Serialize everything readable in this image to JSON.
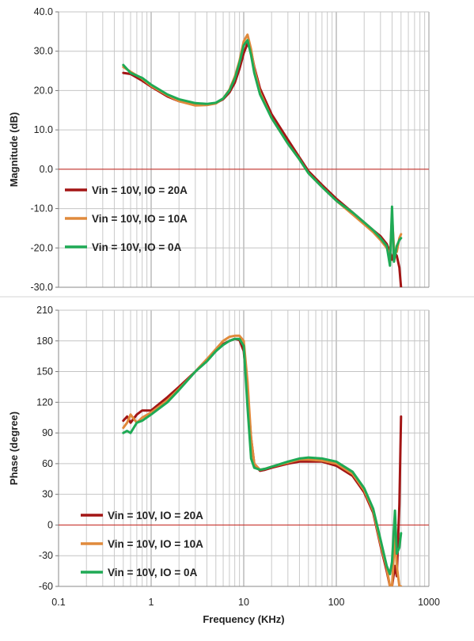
{
  "chart_data": [
    {
      "type": "line",
      "xlabel": "",
      "ylabel": "Magnitude (dB)",
      "xscale": "log",
      "xlim": [
        0.1,
        1000
      ],
      "ylim": [
        -30,
        40
      ],
      "y_ticks": [
        "40.0",
        "30.0",
        "20.0",
        "10.0",
        "0.0",
        "-10.0",
        "-20.0",
        "-30.0"
      ],
      "reference_line": 0,
      "grid": true,
      "legend_placement": "lower-left",
      "series": [
        {
          "name": "Vin = 10V, IO = 20A",
          "color": "#a31515",
          "x": [
            0.5,
            0.6,
            0.8,
            1,
            1.5,
            2,
            3,
            4,
            5,
            6,
            7,
            8,
            9,
            10,
            11,
            12,
            13,
            15,
            20,
            30,
            40,
            50,
            70,
            100,
            150,
            200,
            250,
            300,
            350,
            380,
            400,
            420,
            450,
            480,
            500
          ],
          "y": [
            24.5,
            24.2,
            22.5,
            21,
            18.5,
            17.3,
            16.5,
            16.4,
            16.8,
            17.8,
            19.5,
            22,
            25.5,
            29.5,
            32,
            30,
            26,
            20.5,
            14,
            7.5,
            3,
            -0.5,
            -4,
            -7.5,
            -11,
            -13.5,
            -15.5,
            -17,
            -19,
            -21,
            -23,
            -21,
            -22,
            -25,
            -30
          ]
        },
        {
          "name": "Vin = 10V, IO = 10A",
          "color": "#e08a3c",
          "x": [
            0.5,
            0.6,
            0.8,
            1,
            1.5,
            2,
            3,
            4,
            5,
            6,
            7,
            8,
            9,
            10,
            11,
            12,
            13,
            15,
            20,
            30,
            40,
            50,
            70,
            100,
            150,
            200,
            250,
            300,
            350,
            380,
            400,
            420,
            450,
            480,
            500
          ],
          "y": [
            26,
            24.8,
            23,
            21.2,
            18.8,
            17.3,
            16.2,
            16.3,
            16.7,
            18,
            20.2,
            23.5,
            27.5,
            32.5,
            34.2,
            30.5,
            25.5,
            19.5,
            13,
            6.5,
            2.5,
            -1,
            -4.5,
            -8,
            -11.5,
            -14,
            -16,
            -18,
            -20,
            -22,
            -12,
            -20,
            -21,
            -17.5,
            -16.5
          ]
        },
        {
          "name": "Vin = 10V, IO = 0A",
          "color": "#1faa55",
          "x": [
            0.5,
            0.6,
            0.8,
            1,
            1.5,
            2,
            3,
            4,
            5,
            6,
            7,
            8,
            9,
            10,
            11,
            12,
            13,
            15,
            20,
            30,
            40,
            50,
            70,
            100,
            150,
            200,
            250,
            300,
            350,
            380,
            400,
            420,
            450,
            480,
            500
          ],
          "y": [
            26.5,
            24.5,
            23.2,
            21.5,
            19,
            17.8,
            16.8,
            16.6,
            16.9,
            18,
            20,
            23,
            27,
            31.5,
            32.8,
            29,
            24.5,
            19,
            13,
            6.5,
            2.5,
            -1,
            -4.5,
            -8,
            -11,
            -13.5,
            -15.5,
            -17.5,
            -19.5,
            -24.5,
            -9.5,
            -23.5,
            -19.5,
            -18,
            -17.5
          ]
        }
      ]
    },
    {
      "type": "line",
      "xlabel": "Frequency (KHz)",
      "ylabel": "Phase (degree)",
      "xscale": "log",
      "xlim": [
        0.1,
        1000
      ],
      "ylim": [
        -60,
        210
      ],
      "x_ticks": [
        "0.1",
        "1",
        "10",
        "100",
        "1000"
      ],
      "y_ticks": [
        "210",
        "180",
        "150",
        "120",
        "90",
        "60",
        "30",
        "0",
        "-30",
        "-60"
      ],
      "reference_line": 0,
      "grid": true,
      "legend_placement": "lower-left",
      "series": [
        {
          "name": "Vin = 10V, IO = 20A",
          "color": "#a31515",
          "x": [
            0.5,
            0.55,
            0.6,
            0.7,
            0.8,
            1,
            1.5,
            2,
            3,
            4,
            5,
            6,
            7,
            8,
            9,
            10,
            11,
            12,
            13,
            15,
            17,
            20,
            30,
            40,
            50,
            70,
            100,
            150,
            200,
            250,
            300,
            350,
            380,
            400,
            430,
            450,
            480,
            500
          ],
          "y": [
            102,
            106,
            100,
            108,
            112,
            112,
            125,
            135,
            150,
            162,
            170,
            177,
            180,
            182,
            181,
            170,
            130,
            85,
            60,
            53,
            54,
            56,
            60,
            62,
            62,
            62,
            58,
            48,
            32,
            12,
            -20,
            -45,
            -60,
            -60,
            -40,
            -50,
            20,
            106
          ]
        },
        {
          "name": "Vin = 10V, IO = 10A",
          "color": "#e08a3c",
          "x": [
            0.5,
            0.55,
            0.6,
            0.7,
            0.8,
            1,
            1.5,
            2,
            3,
            4,
            5,
            6,
            7,
            8,
            9,
            10,
            11,
            12,
            13,
            15,
            17,
            20,
            30,
            40,
            50,
            70,
            100,
            150,
            200,
            250,
            300,
            350,
            380,
            400,
            430,
            450,
            480,
            500
          ],
          "y": [
            95,
            100,
            108,
            100,
            105,
            110,
            122,
            133,
            150,
            162,
            172,
            180,
            184,
            185,
            185,
            180,
            140,
            85,
            60,
            54,
            55,
            57,
            61,
            64,
            64,
            63,
            60,
            50,
            34,
            14,
            -18,
            -42,
            -60,
            -60,
            -10,
            -40,
            -60,
            -60
          ]
        },
        {
          "name": "Vin = 10V, IO = 0A",
          "color": "#1faa55",
          "x": [
            0.5,
            0.55,
            0.6,
            0.7,
            0.8,
            1,
            1.5,
            2,
            3,
            4,
            5,
            6,
            7,
            8,
            9,
            10,
            11,
            12,
            13,
            15,
            17,
            20,
            30,
            40,
            50,
            70,
            100,
            150,
            200,
            250,
            300,
            350,
            380,
            400,
            430,
            450,
            480,
            500
          ],
          "y": [
            90,
            92,
            90,
            100,
            102,
            108,
            120,
            132,
            150,
            160,
            170,
            176,
            180,
            182,
            182,
            175,
            115,
            65,
            56,
            54,
            55,
            57,
            62,
            65,
            66,
            65,
            62,
            52,
            36,
            16,
            -14,
            -40,
            -48,
            -36,
            14,
            -28,
            -22,
            -8
          ]
        }
      ]
    }
  ]
}
